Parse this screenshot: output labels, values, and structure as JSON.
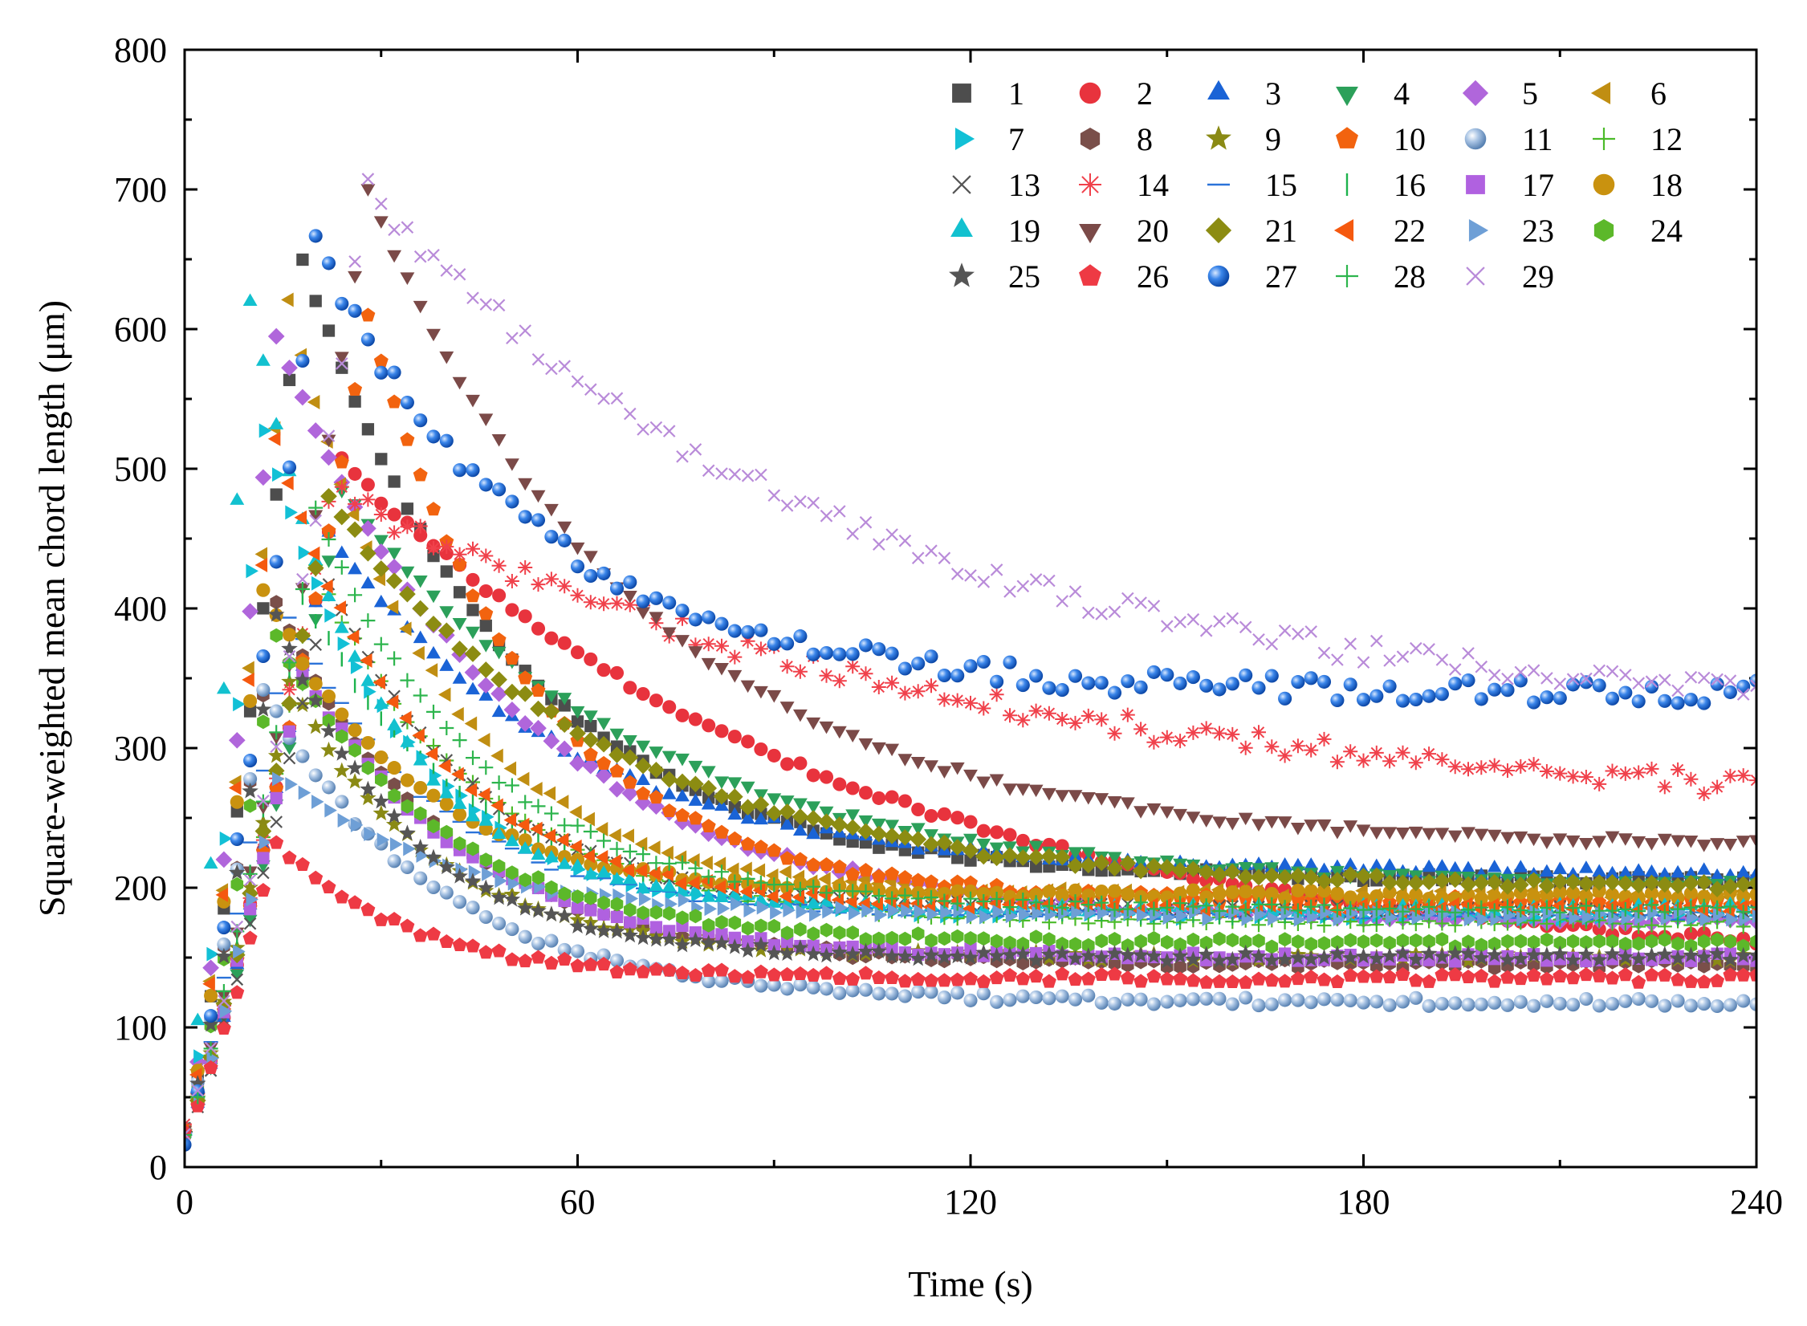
{
  "chart_data": {
    "type": "scatter",
    "title": "",
    "xlabel": "Time (s)",
    "ylabel": "Square-weighted mean chord length (μm)",
    "xlim": [
      0,
      240
    ],
    "ylim": [
      0,
      800
    ],
    "xticks": [
      "0",
      "60",
      "120",
      "180",
      "240"
    ],
    "yticks": [
      "0",
      "100",
      "200",
      "300",
      "400",
      "500",
      "600",
      "700",
      "800"
    ],
    "x_step": 2,
    "legend_position": "top-right",
    "series": [
      {
        "name": "1",
        "color": "#4d4d4d",
        "marker": "square",
        "peak_t": 18,
        "peak_v": 650,
        "end_v": 205,
        "k": 0.032
      },
      {
        "name": "2",
        "color": "#e8333d",
        "marker": "circle",
        "peak_t": 24,
        "peak_v": 505,
        "end_v": 140,
        "k": 0.013
      },
      {
        "name": "3",
        "color": "#1a63d6",
        "marker": "triangle-up",
        "peak_t": 22,
        "peak_v": 455,
        "end_v": 210,
        "k": 0.028
      },
      {
        "name": "4",
        "color": "#2ca05a",
        "marker": "triangle-down",
        "peak_t": 24,
        "peak_v": 485,
        "end_v": 200,
        "k": 0.022
      },
      {
        "name": "5",
        "color": "#b066db",
        "marker": "diamond",
        "peak_t": 14,
        "peak_v": 595,
        "end_v": 175,
        "k": 0.028
      },
      {
        "name": "6",
        "color": "#c08e12",
        "marker": "triangle-left",
        "peak_t": 16,
        "peak_v": 620,
        "end_v": 195,
        "k": 0.045
      },
      {
        "name": "7",
        "color": "#12c0d6",
        "marker": "triangle-right",
        "peak_t": 12,
        "peak_v": 530,
        "end_v": 180,
        "k": 0.048
      },
      {
        "name": "8",
        "color": "#7a4f4a",
        "marker": "hexagon",
        "peak_t": 14,
        "peak_v": 405,
        "end_v": 145,
        "k": 0.04
      },
      {
        "name": "9",
        "color": "#8a8a14",
        "marker": "star",
        "peak_t": 16,
        "peak_v": 345,
        "end_v": 150,
        "k": 0.045
      },
      {
        "name": "10",
        "color": "#f2630f",
        "marker": "pentagon",
        "peak_t": 28,
        "peak_v": 610,
        "end_v": 190,
        "k": 0.04
      },
      {
        "name": "11",
        "color": "#7fa6cf",
        "marker": "sphere",
        "peak_t": 12,
        "peak_v": 340,
        "end_v": 118,
        "k": 0.038
      },
      {
        "name": "12",
        "color": "#4bbb2a",
        "marker": "plus",
        "peak_t": 20,
        "peak_v": 430,
        "end_v": 175,
        "k": 0.04
      },
      {
        "name": "13",
        "color": "#555555",
        "marker": "x",
        "peak_t": 22,
        "peak_v": 420,
        "end_v": 185,
        "k": 0.045
      },
      {
        "name": "14",
        "color": "#f0414b",
        "marker": "asterisk",
        "peak_t": 22,
        "peak_v": 485,
        "end_v": 245,
        "k": 0.01
      },
      {
        "name": "15",
        "color": "#2b73d9",
        "marker": "dash",
        "peak_t": 16,
        "peak_v": 395,
        "end_v": 180,
        "k": 0.045
      },
      {
        "name": "16",
        "color": "#1db34d",
        "marker": "bar",
        "peak_t": 18,
        "peak_v": 410,
        "end_v": 180,
        "k": 0.04
      },
      {
        "name": "17",
        "color": "#b061e0",
        "marker": "square",
        "peak_t": 18,
        "peak_v": 355,
        "end_v": 150,
        "k": 0.04
      },
      {
        "name": "18",
        "color": "#c9920f",
        "marker": "circle",
        "peak_t": 12,
        "peak_v": 415,
        "end_v": 195,
        "k": 0.045
      },
      {
        "name": "19",
        "color": "#12c1cf",
        "marker": "triangle-up",
        "peak_t": 10,
        "peak_v": 620,
        "end_v": 185,
        "k": 0.055
      },
      {
        "name": "20",
        "color": "#7b4a48",
        "marker": "triangle-down",
        "peak_t": 28,
        "peak_v": 698,
        "end_v": 230,
        "k": 0.024
      },
      {
        "name": "21",
        "color": "#8c8c12",
        "marker": "diamond",
        "peak_t": 22,
        "peak_v": 480,
        "end_v": 200,
        "k": 0.024
      },
      {
        "name": "22",
        "color": "#f5590f",
        "marker": "triangle-left",
        "peak_t": 14,
        "peak_v": 520,
        "end_v": 185,
        "k": 0.045
      },
      {
        "name": "23",
        "color": "#6e9fd6",
        "marker": "triangle-right",
        "peak_t": 14,
        "peak_v": 280,
        "end_v": 180,
        "k": 0.04
      },
      {
        "name": "24",
        "color": "#5cb82a",
        "marker": "hexagon",
        "peak_t": 14,
        "peak_v": 380,
        "end_v": 160,
        "k": 0.04
      },
      {
        "name": "25",
        "color": "#555555",
        "marker": "star",
        "peak_t": 14,
        "peak_v": 395,
        "end_v": 150,
        "k": 0.05
      },
      {
        "name": "26",
        "color": "#ee3a44",
        "marker": "pentagon",
        "peak_t": 14,
        "peak_v": 232,
        "end_v": 135,
        "k": 0.05
      },
      {
        "name": "27",
        "color": "#1f6fd9",
        "marker": "sphere",
        "peak_t": 20,
        "peak_v": 660,
        "end_v": 340,
        "k": 0.03
      },
      {
        "name": "28",
        "color": "#2db54d",
        "marker": "plus",
        "peak_t": 20,
        "peak_v": 470,
        "end_v": 185,
        "k": 0.04
      },
      {
        "name": "29",
        "color": "#b98bd9",
        "marker": "x",
        "peak_t": 28,
        "peak_v": 700,
        "end_v": 325,
        "k": 0.014
      }
    ]
  }
}
